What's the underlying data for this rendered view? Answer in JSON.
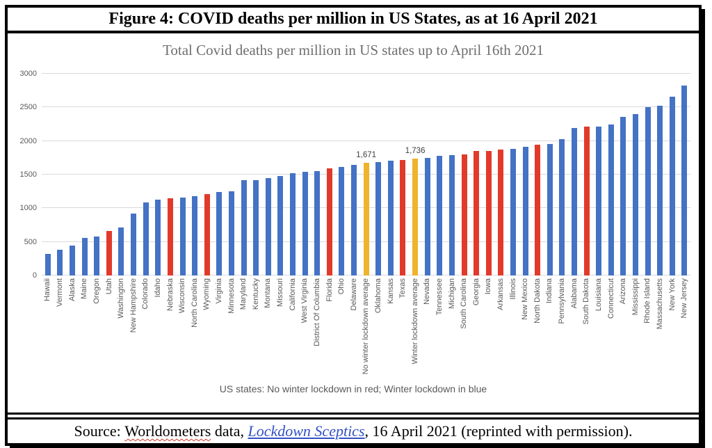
{
  "figure_title": "Figure 4: COVID deaths per million in US States, as at 16 April 2021",
  "footer": {
    "prefix": "Source: ",
    "source_word": "Worldometers",
    "middle": " data, ",
    "link_text": "Lockdown Sceptics",
    "suffix": ", 16 April 2021 (reprinted with permission)."
  },
  "colors": {
    "blue": "#4472c4",
    "red": "#e23a2a",
    "yellow": "#f0b32c",
    "grid": "#d9d9d9",
    "axis_text": "#595959",
    "chart_title_text": "#6f6f6f"
  },
  "chart_data": {
    "type": "bar",
    "title": "Total Covid deaths per million in US states up to April 16th 2021",
    "caption": "US states: No winter lockdown in red; Winter lockdown in blue",
    "ylim": [
      0,
      3000
    ],
    "yticks": [
      0,
      500,
      1000,
      1500,
      2000,
      2500,
      3000
    ],
    "grid": true,
    "legend_position": "bottom-caption",
    "group_meaning": {
      "red": "No winter lockdown state",
      "blue": "Winter lockdown state",
      "yellow": "Group average"
    },
    "bars": [
      {
        "label": "Hawaii",
        "value": 320,
        "group": "blue"
      },
      {
        "label": "Vermont",
        "value": 385,
        "group": "blue"
      },
      {
        "label": "Alaska",
        "value": 440,
        "group": "blue"
      },
      {
        "label": "Maine",
        "value": 560,
        "group": "blue"
      },
      {
        "label": "Oregon",
        "value": 580,
        "group": "blue"
      },
      {
        "label": "Utah",
        "value": 665,
        "group": "red"
      },
      {
        "label": "Washington",
        "value": 715,
        "group": "blue"
      },
      {
        "label": "New Hampshire",
        "value": 925,
        "group": "blue"
      },
      {
        "label": "Colorado",
        "value": 1085,
        "group": "blue"
      },
      {
        "label": "Idaho",
        "value": 1125,
        "group": "blue"
      },
      {
        "label": "Nebraska",
        "value": 1145,
        "group": "red"
      },
      {
        "label": "Wisconsin",
        "value": 1160,
        "group": "blue"
      },
      {
        "label": "North Carolina",
        "value": 1180,
        "group": "blue"
      },
      {
        "label": "Wyoming",
        "value": 1210,
        "group": "red"
      },
      {
        "label": "Virginia",
        "value": 1245,
        "group": "blue"
      },
      {
        "label": "Minnesota",
        "value": 1255,
        "group": "blue"
      },
      {
        "label": "Maryland",
        "value": 1415,
        "group": "blue"
      },
      {
        "label": "Kentucky",
        "value": 1415,
        "group": "blue"
      },
      {
        "label": "Montana",
        "value": 1445,
        "group": "blue"
      },
      {
        "label": "Missouri",
        "value": 1480,
        "group": "blue"
      },
      {
        "label": "California",
        "value": 1520,
        "group": "blue"
      },
      {
        "label": "West Virginia",
        "value": 1540,
        "group": "blue"
      },
      {
        "label": "District Of Columbia",
        "value": 1555,
        "group": "blue"
      },
      {
        "label": "Florida",
        "value": 1595,
        "group": "red"
      },
      {
        "label": "Ohio",
        "value": 1615,
        "group": "blue"
      },
      {
        "label": "Delaware",
        "value": 1640,
        "group": "blue"
      },
      {
        "label": "No winter lockdown average",
        "value": 1671,
        "group": "yellow",
        "data_label": "1,671"
      },
      {
        "label": "Oklahoma",
        "value": 1690,
        "group": "blue"
      },
      {
        "label": "Kansas",
        "value": 1705,
        "group": "blue"
      },
      {
        "label": "Texas",
        "value": 1715,
        "group": "red"
      },
      {
        "label": "Winter lockdown average",
        "value": 1736,
        "group": "yellow",
        "data_label": "1,736"
      },
      {
        "label": "Nevada",
        "value": 1750,
        "group": "blue"
      },
      {
        "label": "Tennessee",
        "value": 1775,
        "group": "blue"
      },
      {
        "label": "Michigan",
        "value": 1785,
        "group": "blue"
      },
      {
        "label": "South Carolina",
        "value": 1805,
        "group": "red"
      },
      {
        "label": "Georgia",
        "value": 1850,
        "group": "red"
      },
      {
        "label": "Iowa",
        "value": 1855,
        "group": "red"
      },
      {
        "label": "Arkansas",
        "value": 1870,
        "group": "red"
      },
      {
        "label": "Illinois",
        "value": 1885,
        "group": "blue"
      },
      {
        "label": "New Mexico",
        "value": 1910,
        "group": "blue"
      },
      {
        "label": "North Dakota",
        "value": 1945,
        "group": "red"
      },
      {
        "label": "Indiana",
        "value": 1960,
        "group": "blue"
      },
      {
        "label": "Pennsylvania",
        "value": 2025,
        "group": "blue"
      },
      {
        "label": "Alabama",
        "value": 2195,
        "group": "blue"
      },
      {
        "label": "South Dakota",
        "value": 2210,
        "group": "red"
      },
      {
        "label": "Louisiana",
        "value": 2215,
        "group": "blue"
      },
      {
        "label": "Connecticut",
        "value": 2245,
        "group": "blue"
      },
      {
        "label": "Arizona",
        "value": 2355,
        "group": "blue"
      },
      {
        "label": "Mississippi",
        "value": 2395,
        "group": "blue"
      },
      {
        "label": "Rhode Island",
        "value": 2500,
        "group": "blue"
      },
      {
        "label": "Massachusetts",
        "value": 2525,
        "group": "blue"
      },
      {
        "label": "New York",
        "value": 2660,
        "group": "blue"
      },
      {
        "label": "New Jersey",
        "value": 2825,
        "group": "blue"
      }
    ]
  }
}
